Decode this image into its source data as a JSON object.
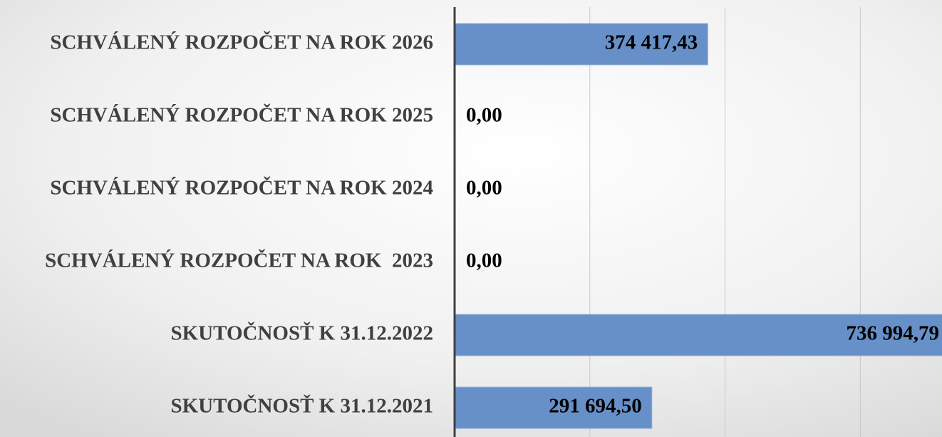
{
  "chart_data": {
    "type": "barh",
    "categories": [
      "SCHVÁLENÝ ROZPOČET NA ROK 2026",
      "SCHVÁLENÝ ROZPOČET NA ROK 2025",
      "SCHVÁLENÝ ROZPOČET NA ROK 2024",
      "SCHVÁLENÝ ROZPOČET NA ROK  2023",
      "SKUTOČNOSŤ K 31.12.2022",
      "SKUTOČNOSŤ K 31.12.2021"
    ],
    "values": [
      374417.43,
      0,
      0,
      0,
      736994.79,
      291694.5
    ],
    "value_labels": [
      "374 417,43",
      "0,00",
      "0,00",
      "0,00",
      "736 994,79",
      "291 694,50"
    ],
    "color": "#6790c8",
    "xlim": [
      0,
      720800
    ],
    "xticks": [
      200000,
      400000,
      600000
    ],
    "grid": true
  }
}
